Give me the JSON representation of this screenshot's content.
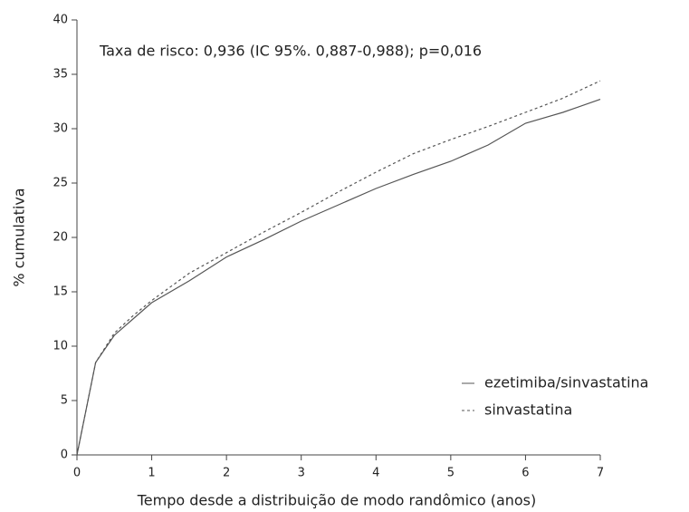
{
  "chart_data": {
    "type": "line",
    "annotation": "Taxa de risco: 0,936 (IC 95%. 0,887-0,988); p=0,016",
    "x_label": "Tempo desde a distribuição de modo randômico (anos)",
    "y_label": "% cumulativa",
    "x": [
      0,
      0.25,
      0.5,
      0.75,
      1,
      1.5,
      2,
      2.5,
      3,
      3.5,
      4,
      4.5,
      5,
      5.5,
      6,
      6.5,
      7
    ],
    "series": [
      {
        "name": "ezetimiba/sinvastatina",
        "color": "#555555",
        "dash": "none",
        "values": [
          0,
          8.5,
          11,
          12.5,
          14,
          16,
          18.2,
          19.8,
          21.5,
          23,
          24.5,
          25.8,
          27,
          28.5,
          30.5,
          31.5,
          32.7
        ]
      },
      {
        "name": "sinvastatina",
        "color": "#555555",
        "dash": "3,3",
        "values": [
          0,
          8.5,
          11.2,
          12.8,
          14.2,
          16.7,
          18.6,
          20.5,
          22.3,
          24.2,
          26,
          27.7,
          29,
          30.2,
          31.5,
          32.8,
          34.4
        ]
      }
    ],
    "xlim": [
      0,
      7
    ],
    "xticks": [
      0,
      1,
      2,
      3,
      4,
      5,
      6,
      7
    ],
    "ylim": [
      0,
      40
    ],
    "yticks": [
      0,
      5,
      10,
      15,
      20,
      25,
      30,
      35,
      40
    ]
  }
}
